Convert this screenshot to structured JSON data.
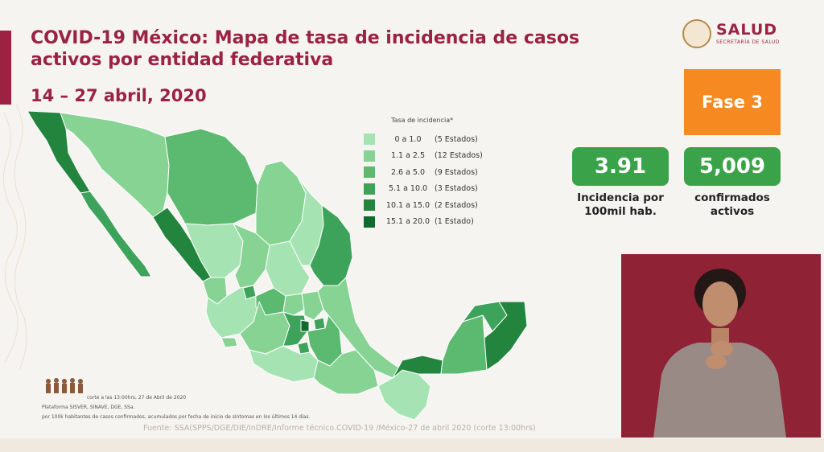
{
  "header": {
    "title": "COVID-19 México: Mapa de tasa de incidencia de casos activos por entidad federativa",
    "date_range": "14 – 27 abril, 2020"
  },
  "logo": {
    "word": "SALUD",
    "subtitle": "SECRETARÍA DE SALUD"
  },
  "fase_label": "Fase 3",
  "stats": {
    "incidence_value": "3.91",
    "incidence_label_line1": "Incidencia por",
    "incidence_label_line2": "100mil hab.",
    "active_value": "5,009",
    "active_label_line1": "confirmados",
    "active_label_line2": "activos"
  },
  "legend": {
    "title": "Tasa de incidencia*",
    "items": [
      {
        "range": "0 a 1.0",
        "count": "(5 Estados)",
        "color": "#a6e3b3"
      },
      {
        "range": "1.1 a 2.5",
        "count": "(12 Estados)",
        "color": "#86d394"
      },
      {
        "range": "2.6 a 5.0",
        "count": "(9 Estados)",
        "color": "#5cb970"
      },
      {
        "range": "5.1 a 10.0",
        "count": "(3 Estados)",
        "color": "#3ea35a"
      },
      {
        "range": "10.1 a 15.0",
        "count": "(2 Estados)",
        "color": "#23843e"
      },
      {
        "range": "15.1 a 20.0",
        "count": "(1 Estado)",
        "color": "#0f6a2d"
      }
    ]
  },
  "notes": {
    "line1": "corte a las 13:00hrs, 27 de Abril de 2020",
    "line2": "Plataforma SISVER, SINAVE, DGE, SSa.",
    "line3": "por 100k habitantes de casos confirmados, acumulados por fecha de inicio de síntomas en los últimos 14 días."
  },
  "source": "Fuente: SSA(SPPS/DGE/DIE/InDRE/Informe técnico.COVID-19 /México-27 de abril 2020 (corte 13:00hrs)",
  "colors": {
    "brand": "#9b2242",
    "fase_orange": "#f6891f",
    "stat_green": "#3aa248"
  }
}
